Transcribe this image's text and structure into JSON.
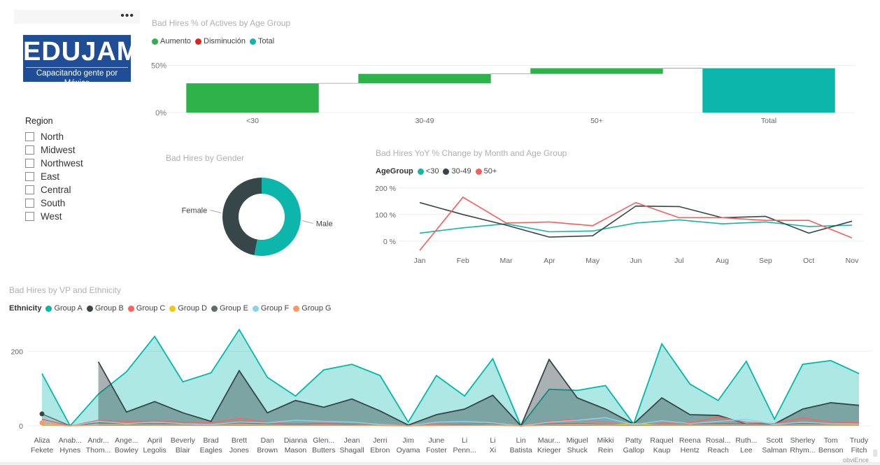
{
  "logo": {
    "name": "EDUJAM",
    "tagline": "Capacitando gente por México"
  },
  "filter_bar": {
    "more": "•••"
  },
  "slicer": {
    "title": "Region",
    "items": [
      "North",
      "Midwest",
      "Northwest",
      "East",
      "Central",
      "South",
      "West"
    ]
  },
  "waterfall": {
    "title": "Bad Hires % of Actives by Age Group",
    "legend": [
      {
        "label": "Aumento",
        "color": "#2eb24a"
      },
      {
        "label": "Disminución",
        "color": "#e2231a"
      },
      {
        "label": "Total",
        "color": "#0cb6aa"
      }
    ]
  },
  "donut": {
    "title": "Bad Hires by Gender"
  },
  "line": {
    "title": "Bad Hires YoY % Change by Month and Age Group",
    "legend_title": "AgeGroup",
    "legend": [
      {
        "label": "<30",
        "color": "#15b5a6"
      },
      {
        "label": "30-49",
        "color": "#374649"
      },
      {
        "label": "50+",
        "color": "#f0605d"
      }
    ]
  },
  "area": {
    "title": "Bad Hires by VP and Ethnicity",
    "legend_title": "Ethnicity",
    "legend": [
      {
        "label": "Group A",
        "color": "#01b8aa"
      },
      {
        "label": "Group B",
        "color": "#374649"
      },
      {
        "label": "Group C",
        "color": "#fd625e"
      },
      {
        "label": "Group D",
        "color": "#f2c80f"
      },
      {
        "label": "Group E",
        "color": "#5f6b6d"
      },
      {
        "label": "Group F",
        "color": "#8ad4eb"
      },
      {
        "label": "Group G",
        "color": "#fe9666"
      }
    ]
  },
  "watermark": "obviEnce",
  "chart_data": [
    {
      "type": "bar",
      "subtype": "waterfall",
      "title": "Bad Hires % of Actives by Age Group",
      "categories": [
        "<30",
        "30-49",
        "50+",
        "Total"
      ],
      "start": [
        0,
        31,
        41,
        47
      ],
      "end": [
        31,
        41,
        47,
        47
      ],
      "total_value": 47,
      "ylim": [
        0,
        60
      ],
      "yticks": [
        0,
        50
      ],
      "ytick_labels": [
        "0%",
        "50%"
      ],
      "series_types": [
        "Aumento",
        "Aumento",
        "Aumento",
        "Total"
      ]
    },
    {
      "type": "pie",
      "subtype": "donut",
      "title": "Bad Hires by Gender",
      "labels": [
        "Male",
        "Female"
      ],
      "values": [
        53,
        47
      ],
      "colors": [
        "#0cb6aa",
        "#374649"
      ]
    },
    {
      "type": "line",
      "title": "Bad Hires YoY % Change by Month and Age Group",
      "categories": [
        "Jan",
        "Feb",
        "Mar",
        "Apr",
        "May",
        "Jun",
        "Jul",
        "Aug",
        "Sep",
        "Oct",
        "Nov"
      ],
      "series": [
        {
          "name": "<30",
          "color": "#15b5a6",
          "values": [
            30,
            50,
            65,
            35,
            38,
            68,
            80,
            65,
            72,
            55,
            60
          ]
        },
        {
          "name": "30-49",
          "color": "#374649",
          "values": [
            145,
            100,
            60,
            15,
            20,
            132,
            130,
            88,
            93,
            30,
            75
          ]
        },
        {
          "name": "50+",
          "color": "#f0605d",
          "values": [
            -35,
            165,
            68,
            72,
            58,
            145,
            88,
            88,
            78,
            78,
            12
          ]
        }
      ],
      "ylim": [
        -40,
        210
      ],
      "yticks": [
        0,
        100,
        200
      ],
      "ytick_labels": [
        "0 %",
        "100 %",
        "200 %"
      ]
    },
    {
      "type": "area",
      "title": "Bad Hires by VP and Ethnicity",
      "categories": [
        "Aliza Fekete",
        "Anab... Hynes",
        "Andr... Thom...",
        "Ange... Bowley",
        "April Legolis",
        "Beverly Blair",
        "Brad Eagles",
        "Brett Jones",
        "Dan Brown",
        "Dianna Mason",
        "Glen... Butters",
        "Jean Shagall",
        "Jerri Ebron",
        "Jim Oyama",
        "June Foster",
        "Li Penn...",
        "Li Xi",
        "Lin Batista",
        "Maur... Krieger",
        "Miguel Shuck",
        "Mikki Rein",
        "Patty Gallop",
        "Raquel Kaup",
        "Reena Hentz",
        "Rosal... Reach",
        "Ruth... Lee",
        "Scott Salman",
        "Sherley Rhym...",
        "Tom Benson",
        "Trudy Fitch"
      ],
      "ylim": [
        0,
        270
      ],
      "yticks": [
        0,
        200
      ],
      "series": [
        {
          "name": "Group A",
          "color": "#01b8aa",
          "values": [
            140,
            0,
            85,
            145,
            240,
            118,
            142,
            258,
            130,
            80,
            150,
            165,
            135,
            10,
            135,
            80,
            180,
            0,
            98,
            95,
            108,
            5,
            220,
            112,
            68,
            173,
            18,
            165,
            175,
            140
          ]
        },
        {
          "name": "Group B",
          "color": "#374649",
          "values": [
            null,
            null,
            172,
            37,
            65,
            35,
            12,
            148,
            35,
            68,
            50,
            72,
            40,
            2,
            30,
            45,
            82,
            0,
            178,
            75,
            45,
            5,
            75,
            30,
            28,
            5,
            5,
            45,
            62,
            55
          ]
        },
        {
          "name": "Group C",
          "color": "#fd625e",
          "values": [
            18,
            0,
            15,
            12,
            14,
            10,
            8,
            20,
            10,
            6,
            8,
            6,
            4,
            0,
            6,
            4,
            8,
            0,
            12,
            18,
            10,
            2,
            8,
            8,
            24,
            10,
            6,
            22,
            10,
            8
          ]
        },
        {
          "name": "Group D",
          "color": "#f2c80f",
          "values": [
            2,
            0,
            3,
            4,
            2,
            3,
            2,
            4,
            2,
            2,
            3,
            2,
            1,
            0,
            2,
            3,
            2,
            0,
            3,
            4,
            2,
            6,
            3,
            2,
            3,
            4,
            2,
            3,
            2,
            2
          ]
        },
        {
          "name": "Group E",
          "color": "#5f6b6d",
          "values": [
            32,
            0,
            8,
            6,
            5,
            6,
            4,
            8,
            5,
            4,
            5,
            4,
            3,
            0,
            3,
            4,
            5,
            0,
            5,
            6,
            4,
            1,
            4,
            4,
            6,
            5,
            3,
            6,
            4,
            4
          ]
        },
        {
          "name": "Group F",
          "color": "#8ad4eb",
          "values": [
            5,
            0,
            12,
            6,
            10,
            6,
            4,
            10,
            8,
            15,
            12,
            10,
            4,
            0,
            10,
            12,
            8,
            0,
            10,
            15,
            22,
            3,
            14,
            6,
            12,
            18,
            4,
            10,
            6,
            5
          ]
        },
        {
          "name": "Group G",
          "color": "#fe9666",
          "values": [
            8,
            0,
            3,
            3,
            3,
            3,
            2,
            4,
            3,
            2,
            3,
            2,
            2,
            0,
            2,
            2,
            3,
            0,
            3,
            4,
            3,
            2,
            3,
            3,
            3,
            3,
            2,
            3,
            3,
            3
          ]
        }
      ]
    }
  ]
}
